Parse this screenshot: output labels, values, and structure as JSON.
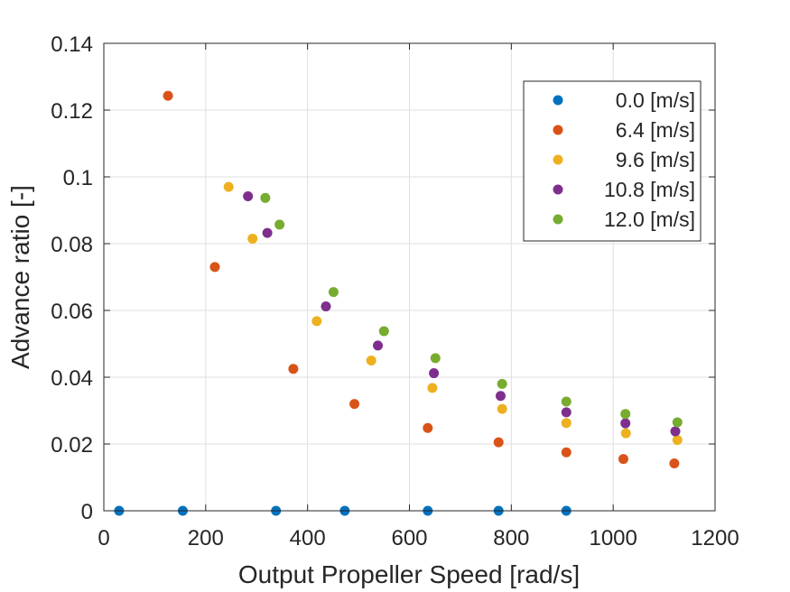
{
  "chart_data": {
    "type": "scatter",
    "title": "",
    "xlabel": "Output Propeller Speed [rad/s]",
    "ylabel": "Advance ratio [-]",
    "xlim": [
      0,
      1200
    ],
    "ylim": [
      0,
      0.14
    ],
    "xticks": [
      0,
      200,
      400,
      600,
      800,
      1000,
      1200
    ],
    "yticks": [
      0,
      0.02,
      0.04,
      0.06,
      0.08,
      0.1,
      0.12,
      0.14
    ],
    "xtick_labels": [
      "0",
      "200",
      "400",
      "600",
      "800",
      "1000",
      "1200"
    ],
    "ytick_labels": [
      "0",
      "0.02",
      "0.04",
      "0.06",
      "0.08",
      "0.1",
      "0.12",
      "0.14"
    ],
    "grid": true,
    "legend_position": "top-right",
    "series": [
      {
        "name": "0.0 [m/s]",
        "color": "#0072BD",
        "x": [
          30,
          155,
          338,
          473,
          636,
          775,
          908
        ],
        "y": [
          0,
          0,
          0,
          0,
          0,
          0,
          0
        ]
      },
      {
        "name": "6.4 [m/s]",
        "color": "#D95319",
        "x": [
          126,
          218,
          372,
          492,
          636,
          775,
          908,
          1020,
          1120
        ],
        "y": [
          0.1243,
          0.073,
          0.0425,
          0.032,
          0.0248,
          0.0205,
          0.0175,
          0.0155,
          0.0142
        ]
      },
      {
        "name": "9.6 [m/s]",
        "color": "#EDB120",
        "x": [
          245,
          292,
          418,
          525,
          645,
          782,
          908,
          1025,
          1126
        ],
        "y": [
          0.097,
          0.0815,
          0.0568,
          0.045,
          0.0368,
          0.0305,
          0.0263,
          0.0232,
          0.0212
        ]
      },
      {
        "name": "10.8 [m/s]",
        "color": "#7E2F8E",
        "x": [
          283,
          321,
          436,
          538,
          648,
          779,
          908,
          1024,
          1122
        ],
        "y": [
          0.0942,
          0.0832,
          0.0612,
          0.0495,
          0.0412,
          0.0344,
          0.0295,
          0.0262,
          0.0238
        ]
      },
      {
        "name": "12.0 [m/s]",
        "color": "#77AC30",
        "x": [
          317,
          345,
          451,
          550,
          651,
          782,
          908,
          1024,
          1126
        ],
        "y": [
          0.0937,
          0.0857,
          0.0655,
          0.0538,
          0.0457,
          0.038,
          0.0327,
          0.029,
          0.0265
        ]
      }
    ]
  }
}
